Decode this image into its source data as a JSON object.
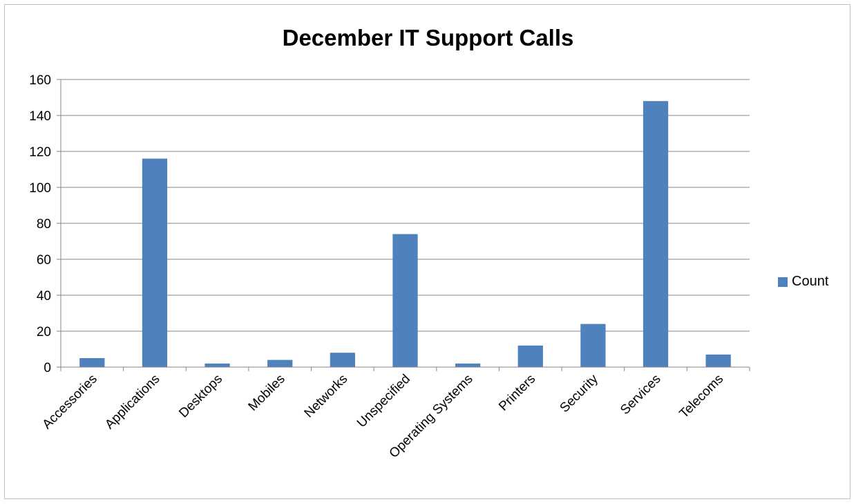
{
  "chart_data": {
    "type": "bar",
    "title": "December IT Support Calls",
    "xlabel": "",
    "ylabel": "",
    "categories": [
      "Accessories",
      "Applications",
      "Desktops",
      "Mobiles",
      "Networks",
      "Unspecified",
      "Operating Systems",
      "Printers",
      "Security",
      "Services",
      "Telecoms"
    ],
    "series": [
      {
        "name": "Count",
        "values": [
          5,
          116,
          2,
          4,
          8,
          74,
          2,
          12,
          24,
          148,
          7
        ],
        "color": "#4f81bd"
      }
    ],
    "ylim": [
      0,
      160
    ],
    "yticks": [
      0,
      20,
      40,
      60,
      80,
      100,
      120,
      140,
      160
    ],
    "grid": true,
    "legend_position": "right"
  }
}
